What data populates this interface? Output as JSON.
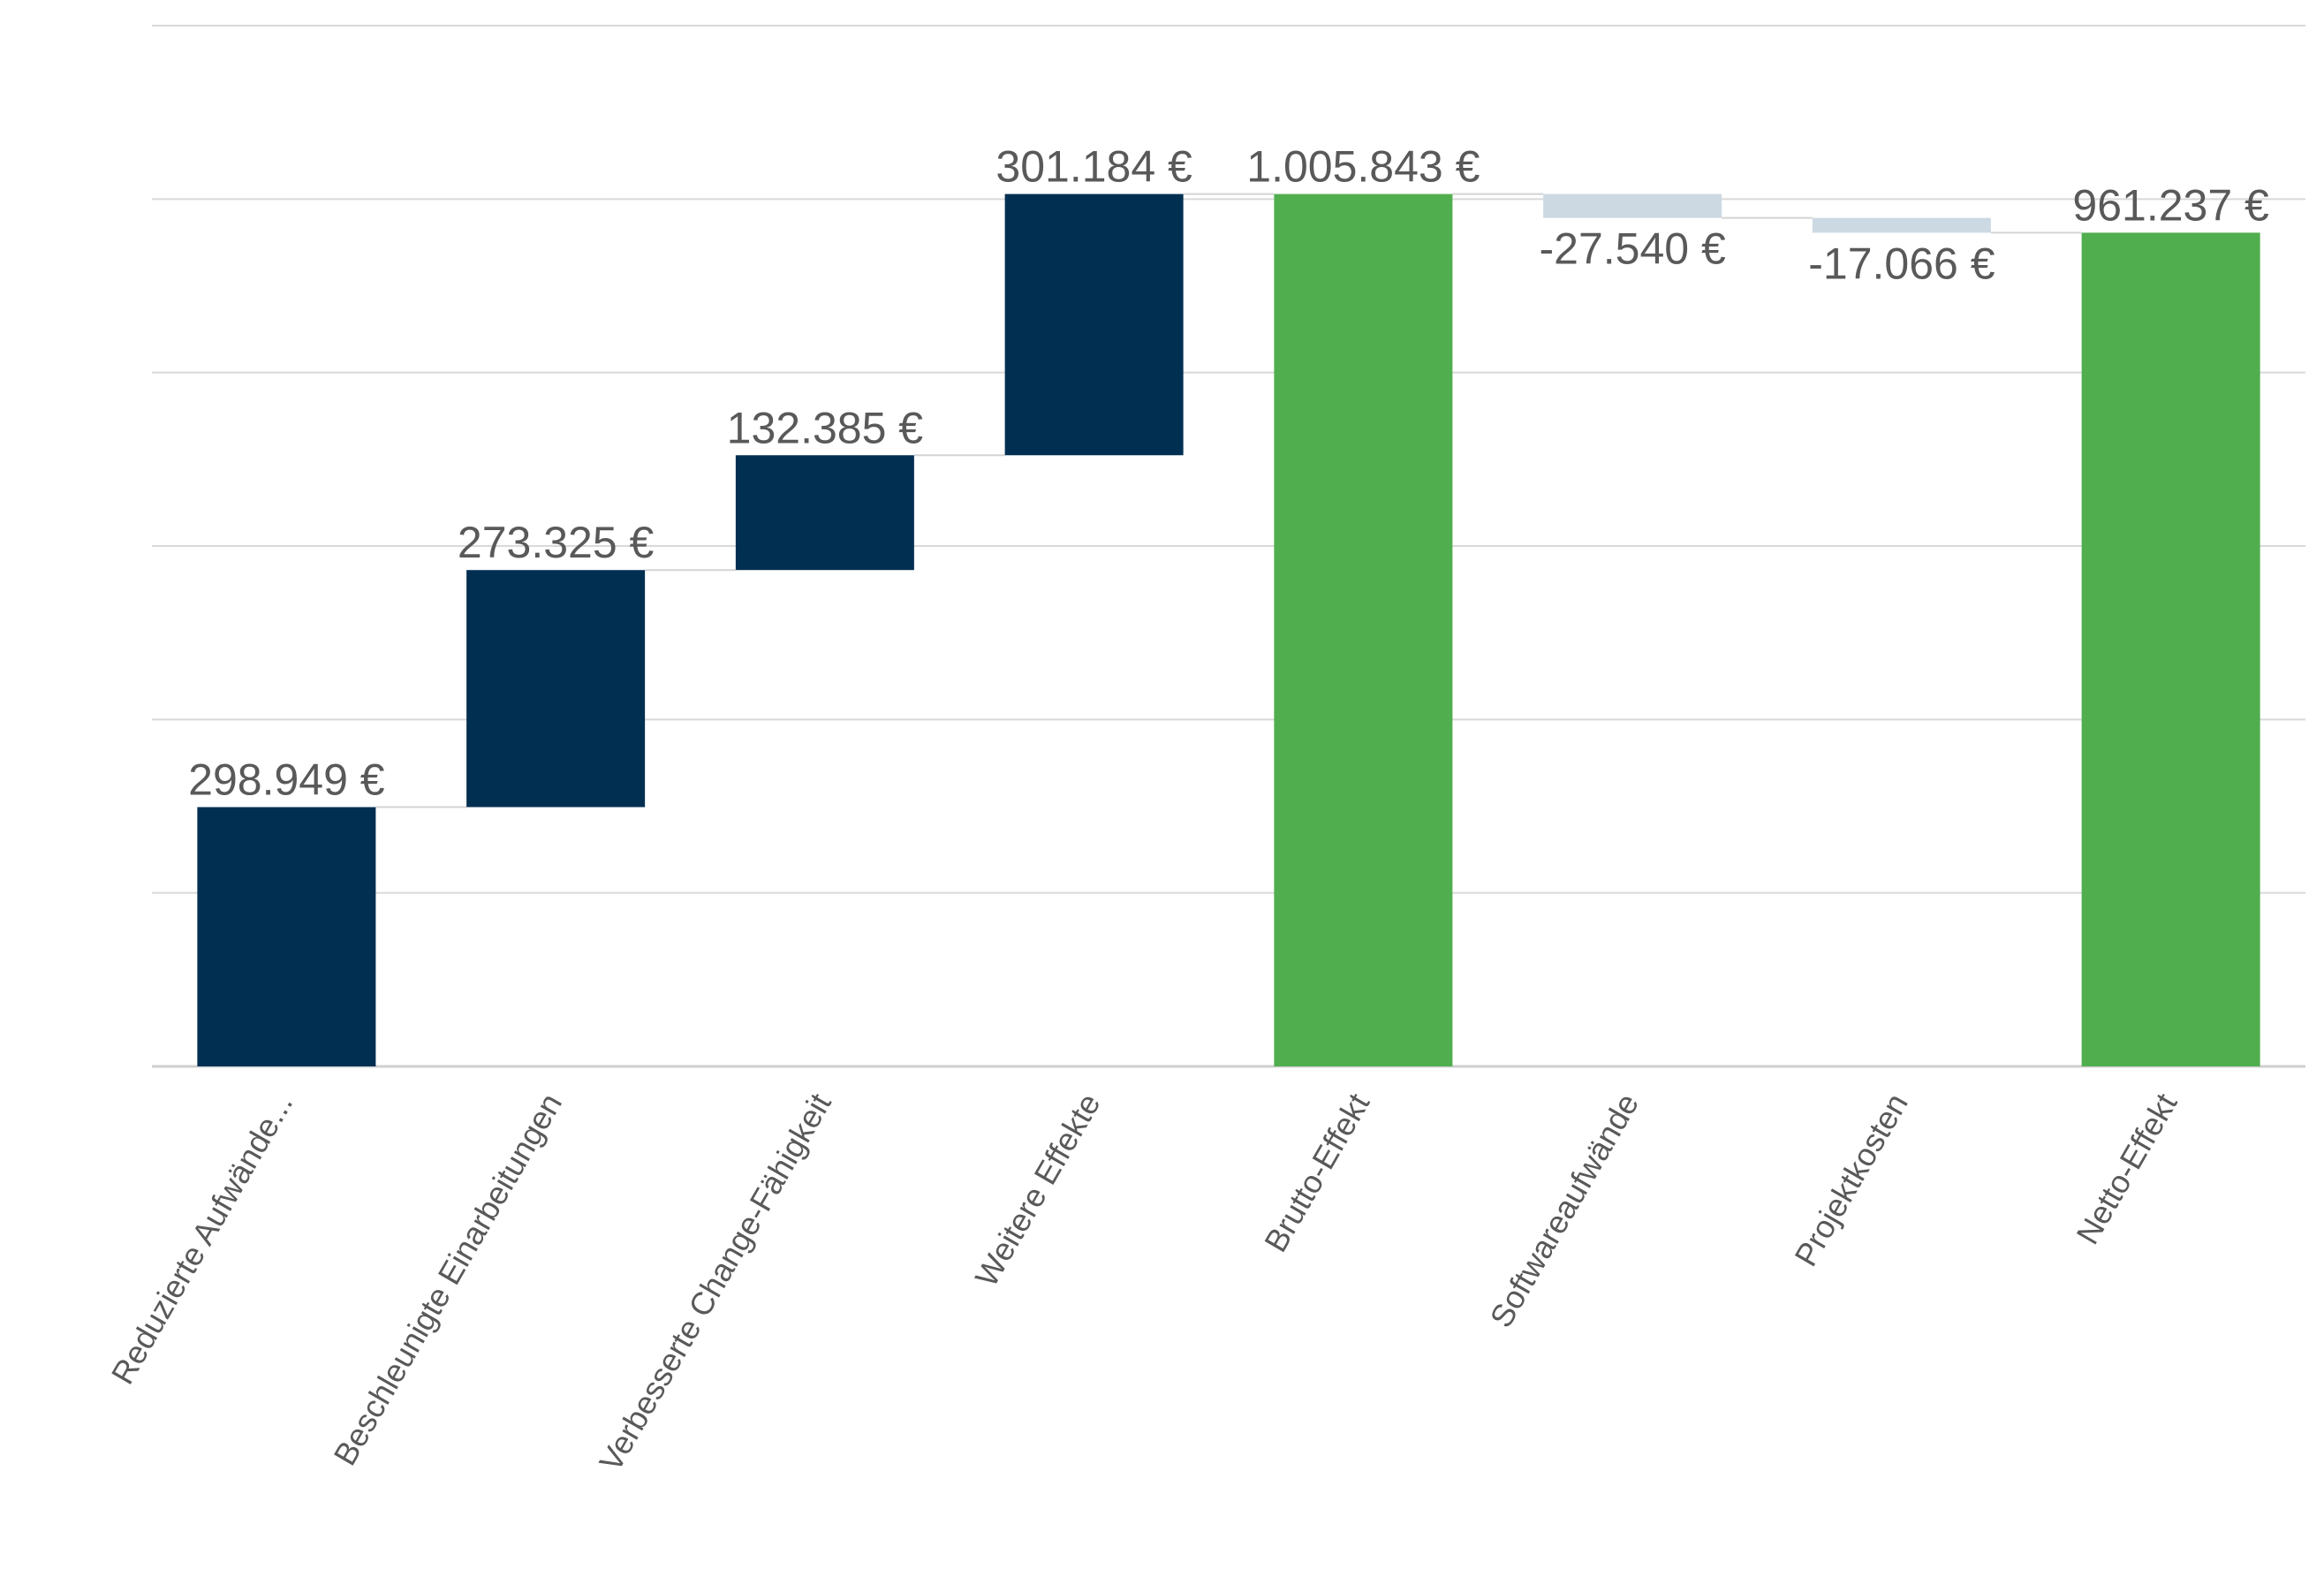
{
  "chart_data": {
    "type": "waterfall",
    "title": "",
    "xlabel": "",
    "ylabel": "",
    "categories": [
      "Reduzierte Aufwände...",
      "Beschleunigte Einarbeitungen",
      "Verbesserte Change-Fähigkeit",
      "Weitere Effekte",
      "Brutto-Effekt",
      "Softwareaufwände",
      "Projektkosten",
      "Netto-Effekt"
    ],
    "values": [
      298949,
      273325,
      132385,
      301184,
      1005843,
      -27540,
      -17066,
      961237
    ],
    "kinds": [
      "increase",
      "increase",
      "increase",
      "increase",
      "total",
      "decrease",
      "decrease",
      "total"
    ],
    "value_labels": [
      "298.949 €",
      "273.325 €",
      "132.385 €",
      "301.184 €",
      "1.005.843 €",
      "-27.540 €",
      "-17.066 €",
      "961.237 €"
    ],
    "ylim": [
      0,
      1200000
    ],
    "gridlines": [
      0,
      200000,
      400000,
      600000,
      800000,
      1000000,
      1200000
    ],
    "grid": true,
    "y_axis_labels_shown": false,
    "legend": "none",
    "colors": {
      "increase": "#002f52",
      "total": "#50ae4e",
      "decrease": "#ccd9e3",
      "grid": "#d9d9d9",
      "text": "#595959"
    }
  }
}
